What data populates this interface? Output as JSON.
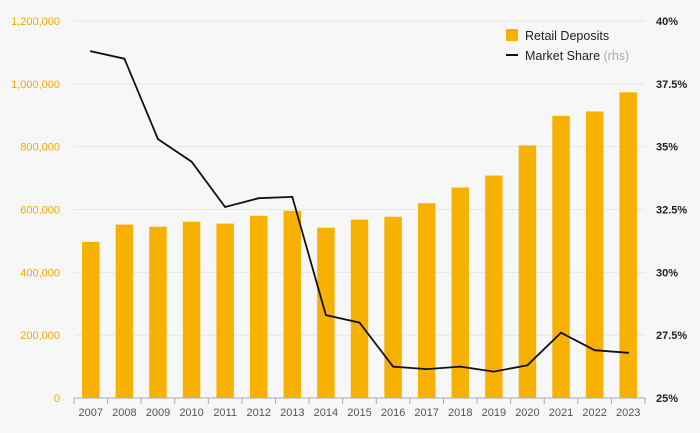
{
  "chart_data": {
    "type": "bar+line",
    "categories": [
      "2007",
      "2008",
      "2009",
      "2010",
      "2011",
      "2012",
      "2013",
      "2014",
      "2015",
      "2016",
      "2017",
      "2018",
      "2019",
      "2020",
      "2021",
      "2022",
      "2023"
    ],
    "series": [
      {
        "name": "Retail Deposits",
        "type": "bar",
        "axis": "left",
        "values": [
          497000,
          552000,
          545000,
          561000,
          555000,
          580000,
          596000,
          542000,
          568000,
          577000,
          620000,
          670000,
          708000,
          804000,
          898000,
          912000,
          973000
        ]
      },
      {
        "name": "Market Share",
        "type": "line",
        "axis": "right",
        "values": [
          38.8,
          38.5,
          35.3,
          34.4,
          32.6,
          32.95,
          33.0,
          28.3,
          28.0,
          26.25,
          26.15,
          26.25,
          26.05,
          26.3,
          27.6,
          26.9,
          26.8
        ]
      }
    ],
    "ylim_left": [
      0,
      1200000
    ],
    "ylim_right": [
      25,
      40
    ],
    "left_ticks": [
      "0",
      "200,000",
      "400,000",
      "600,000",
      "800,000",
      "1,000,000",
      "1,200,000"
    ],
    "right_ticks": [
      "25%",
      "27.5%",
      "30%",
      "32.5%",
      "35%",
      "37.5%",
      "40%"
    ],
    "legend": {
      "bar_label": "Retail Deposits",
      "line_label": "Market Share",
      "line_suffix": "(rhs)",
      "position": "top-right"
    },
    "colors": {
      "bar": "#f7b100",
      "line": "#111111",
      "left_tick": "#f5a800"
    }
  }
}
